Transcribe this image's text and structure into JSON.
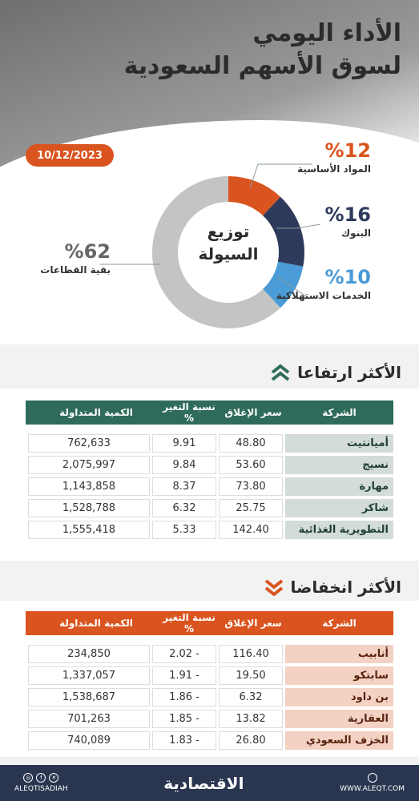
{
  "header": {
    "title_line1": "الأداء اليومي",
    "title_line2": "لسوق الأسهم السعودية",
    "date": "10/12/2023"
  },
  "liquidity": {
    "center_line1": "توزيع",
    "center_line2": "السيولة",
    "segments": [
      {
        "name": "المواد الأساسية",
        "pct_label": "%12",
        "value": 12,
        "color": "#d9541f"
      },
      {
        "name": "البنوك",
        "pct_label": "%16",
        "value": 16,
        "color": "#2e3a5c"
      },
      {
        "name": "الخدمات الاستهلاكية",
        "pct_label": "%10",
        "value": 10,
        "color": "#4a9bd6"
      },
      {
        "name": "بقية القطاعات",
        "pct_label": "%62",
        "value": 62,
        "color": "#c4c4c4"
      }
    ]
  },
  "gainers": {
    "title": "الأكثر ارتفاعا",
    "headers": {
      "company": "الشركة",
      "close": "سعر الإغلاق",
      "pct": "نسبة التغير %",
      "volume": "الكمية المتداولة"
    },
    "rows": [
      {
        "company": "أميانتيت",
        "close": "48.80",
        "pct": "9.91",
        "volume": "762,633"
      },
      {
        "company": "نسيج",
        "close": "53.60",
        "pct": "9.84",
        "volume": "2,075,997"
      },
      {
        "company": "مهارة",
        "close": "73.80",
        "pct": "8.37",
        "volume": "1,143,858"
      },
      {
        "company": "شاكر",
        "close": "25.75",
        "pct": "6.32",
        "volume": "1,528,788"
      },
      {
        "company": "التطويرية الغذائية",
        "close": "142.40",
        "pct": "5.33",
        "volume": "1,555,418"
      }
    ]
  },
  "losers": {
    "title": "الأكثر انخفاضا",
    "headers": {
      "company": "الشركة",
      "close": "سعر الإغلاق",
      "pct": "نسبة التغير %",
      "volume": "الكمية المتداولة"
    },
    "rows": [
      {
        "company": "أنابيب",
        "close": "116.40",
        "pct": "2.02 -",
        "volume": "234,850"
      },
      {
        "company": "سابتكو",
        "close": "19.50",
        "pct": "1.91 -",
        "volume": "1,337,057"
      },
      {
        "company": "بن داود",
        "close": "6.32",
        "pct": "1.86 -",
        "volume": "1,538,687"
      },
      {
        "company": "العقارية",
        "close": "13.82",
        "pct": "1.85 -",
        "volume": "701,263"
      },
      {
        "company": "الخزف السعودي",
        "close": "26.80",
        "pct": "1.83 -",
        "volume": "740,089"
      }
    ]
  },
  "footer": {
    "handle": "ALEQTISADIAH",
    "brand": "الاقتصادية",
    "website": "WWW.ALEQT.COM",
    "social_icons": [
      "instagram-icon",
      "facebook-icon",
      "x-icon"
    ]
  }
}
